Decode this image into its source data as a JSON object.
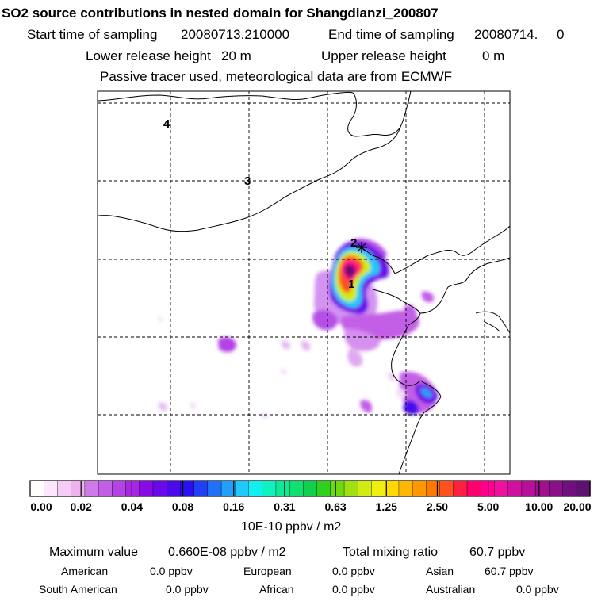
{
  "title": "SO2 source contributions in nested domain for Shangdianzi_200807",
  "header": {
    "start_label": "Start time of sampling",
    "start_value": "20080713.210000",
    "end_label": "End time of sampling",
    "end_value": "20080714.     0",
    "lower_label": "Lower release height",
    "lower_value": "20 m",
    "upper_label": "Upper release height",
    "upper_value": "0 m",
    "note": "Passive tracer used, meteorological data are from ECMWF"
  },
  "map": {
    "markers": [
      {
        "label": "4"
      },
      {
        "label": "3"
      },
      {
        "label": "2"
      },
      {
        "label": "1"
      }
    ],
    "station_marker": "asterisk-station-icon"
  },
  "colorbar": {
    "ticks": [
      "0.00",
      "0.02",
      "0.04",
      "0.08",
      "0.16",
      "0.31",
      "0.63",
      "1.25",
      "2.50",
      "5.00",
      "10.00",
      "20.00"
    ],
    "units": "10E-10 ppbv / m2",
    "colors": [
      "#ffffff",
      "#fbe6fb",
      "#f5ccf5",
      "#eeb2ee",
      "#d07ae8",
      "#c25ee6",
      "#b443e4",
      "#a626e2",
      "#8a0ae6",
      "#6a0ae8",
      "#4a0aec",
      "#2a10f0",
      "#2040f4",
      "#2070f8",
      "#20a0fc",
      "#20c8fc",
      "#10f0f0",
      "#10f0c0",
      "#10e898",
      "#10e070",
      "#10d050",
      "#30d020",
      "#70d810",
      "#a0e010",
      "#d0ec10",
      "#f0f010",
      "#ffd800",
      "#ffb800",
      "#ff9800",
      "#ff7800",
      "#ff5020",
      "#ff2040",
      "#ff0070",
      "#ff0090",
      "#f010a0",
      "#d010a0",
      "#b81098",
      "#a01090",
      "#881088",
      "#701080",
      "#601070"
    ]
  },
  "stats": {
    "max_label": "Maximum value",
    "max_value": "0.660E-08 ppbv / m2",
    "total_label": "Total mixing ratio",
    "total_value": "60.7 ppbv",
    "regions": [
      {
        "name": "American",
        "value": "0.0 ppbv"
      },
      {
        "name": "European",
        "value": "0.0 ppbv"
      },
      {
        "name": "Asian",
        "value": "60.7 ppbv"
      },
      {
        "name": "South American",
        "value": "0.0 ppbv"
      },
      {
        "name": "African",
        "value": "0.0 ppbv"
      },
      {
        "name": "Australian",
        "value": "0.0 ppbv"
      }
    ]
  }
}
